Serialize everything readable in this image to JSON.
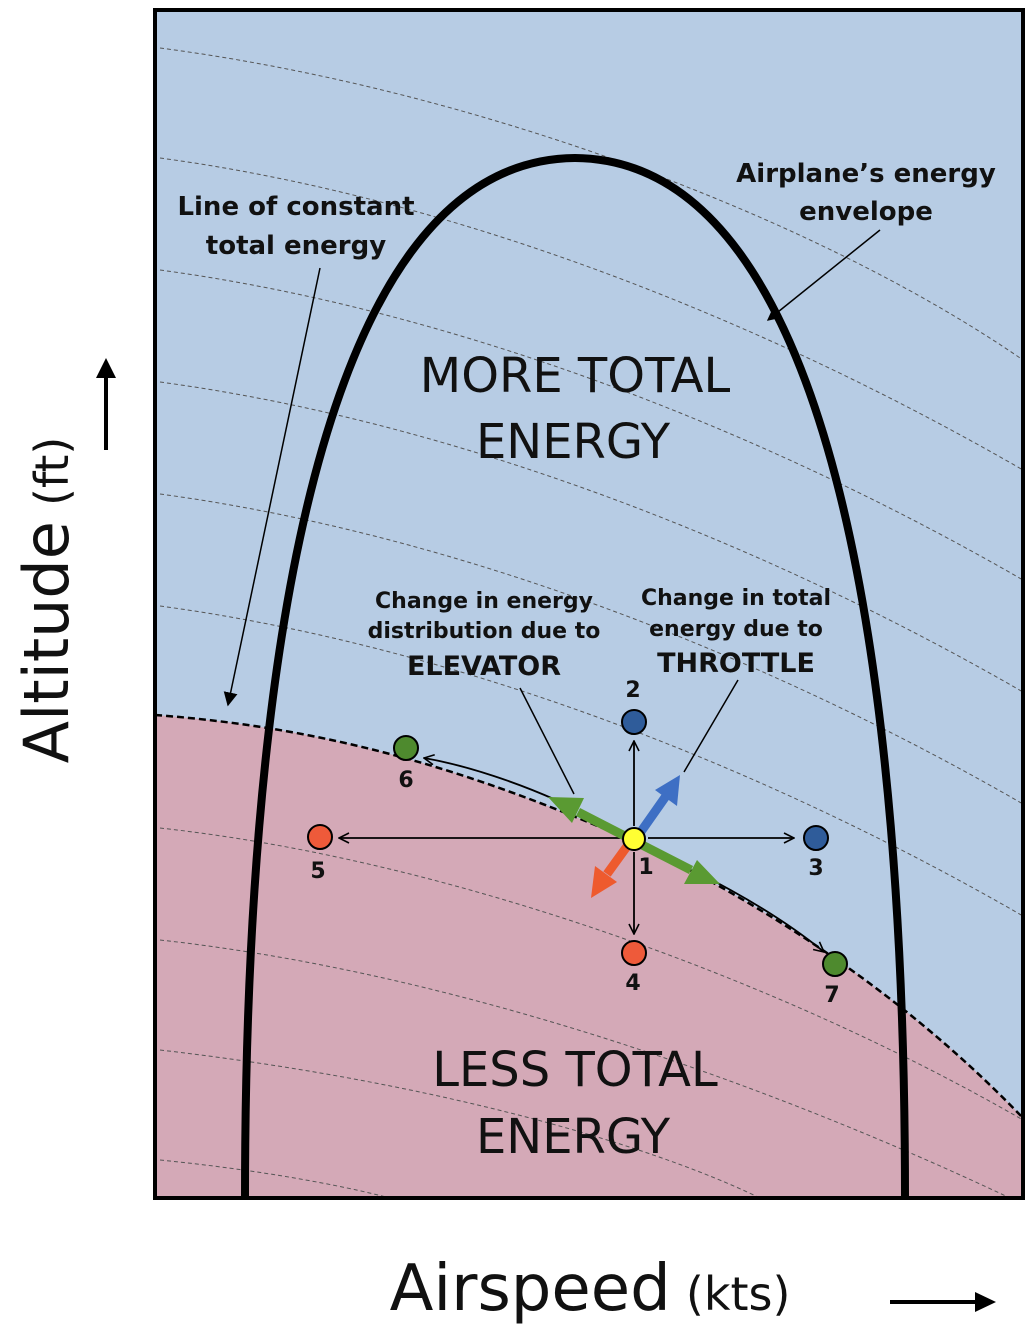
{
  "colors": {
    "upper_region": "#b7cce4",
    "lower_region": "#d4a9b7",
    "envelope": "#000000",
    "elevator_arrow": "#5a9a32",
    "throttle_arrow": "#3e6fc4",
    "decrease_arrow": "#ee5a2e",
    "point_1": "#ffff33",
    "point_blue": "#2f5c9a",
    "point_red": "#ee5a3a",
    "point_green": "#4e8a2e"
  },
  "regions": {
    "more_line1": "MORE TOTAL",
    "more_line2": "ENERGY",
    "less_line1": "LESS TOTAL",
    "less_line2": "ENERGY"
  },
  "annotations": {
    "constant_line1": "Line of constant",
    "constant_line2": "total energy",
    "envelope_line1": "Airplane’s energy",
    "envelope_line2": "envelope",
    "elevator_line1": "Change in energy",
    "elevator_line2": "distribution due to",
    "elevator_line3": "ELEVATOR",
    "throttle_line1": "Change in total",
    "throttle_line2": "energy due to",
    "throttle_line3": "THROTTLE"
  },
  "points": [
    {
      "id": "1",
      "color": "point_1"
    },
    {
      "id": "2",
      "color": "point_blue"
    },
    {
      "id": "3",
      "color": "point_blue"
    },
    {
      "id": "4",
      "color": "point_red"
    },
    {
      "id": "5",
      "color": "point_red"
    },
    {
      "id": "6",
      "color": "point_green"
    },
    {
      "id": "7",
      "color": "point_green"
    }
  ],
  "axes": {
    "y_main": "Altitude",
    "y_unit": "(ft)",
    "x_main": "Airspeed",
    "x_unit": "(kts)"
  }
}
